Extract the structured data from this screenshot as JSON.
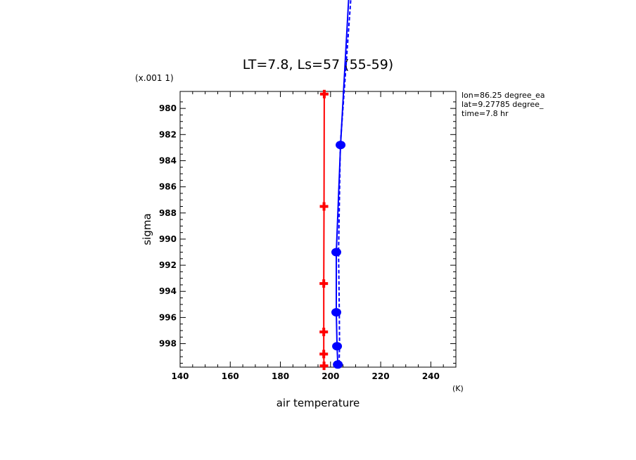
{
  "chart_data": {
    "type": "line",
    "title": "LT=7.8, Ls=57 (55-59)",
    "xlabel": "air temperature",
    "xunit": "(K)",
    "ylabel": "sigma",
    "yscale_label": "(x.001 1)",
    "xlim": [
      140,
      250
    ],
    "ylim": [
      999.8,
      978.7
    ],
    "y_inverted": true,
    "x_ticks": [
      "140",
      "160",
      "180",
      "200",
      "220",
      "240"
    ],
    "y_ticks": [
      "980",
      "982",
      "984",
      "986",
      "988",
      "990",
      "992",
      "994",
      "996",
      "998"
    ],
    "annotations": [
      "lon=86.25 degree_ea",
      "lat=9.27785 degree_",
      "time=7.8 hr"
    ],
    "series": [
      {
        "color": "#ff0000",
        "style": "solid",
        "marker": "plus",
        "points": [
          [
            197.5,
            978.9
          ],
          [
            197.4,
            987.5
          ],
          [
            197.3,
            993.4
          ],
          [
            197.3,
            997.1
          ],
          [
            197.3,
            998.8
          ],
          [
            197.4,
            999.7
          ]
        ]
      },
      {
        "color": "#0000ff",
        "style": "solid",
        "marker": "circle",
        "points": [
          [
            207.7,
            970.0
          ],
          [
            204.0,
            982.8
          ],
          [
            202.3,
            991.0
          ],
          [
            202.3,
            995.6
          ],
          [
            202.6,
            998.2
          ],
          [
            202.9,
            999.6
          ]
        ]
      },
      {
        "color": "#0000ff",
        "style": "dashed",
        "marker": "none",
        "points": [
          [
            208.7,
            970.0
          ],
          [
            203.9,
            982.8
          ],
          [
            203.2,
            991.0
          ],
          [
            203.5,
            995.6
          ],
          [
            203.6,
            998.2
          ],
          [
            203.4,
            999.6
          ]
        ]
      }
    ]
  }
}
